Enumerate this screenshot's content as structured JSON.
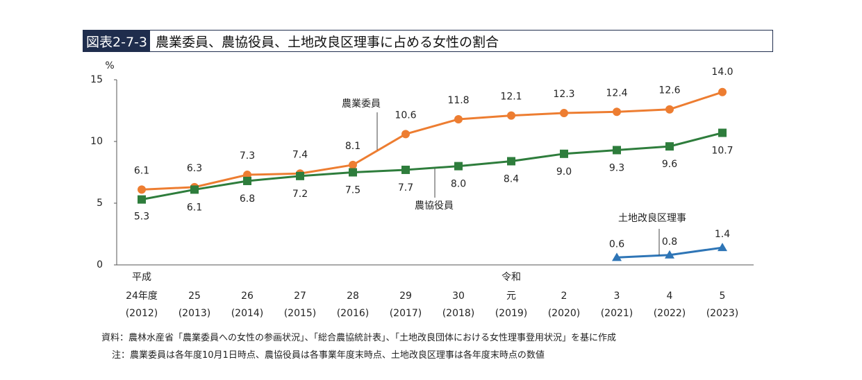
{
  "header": {
    "figure_no": "図表2-7-3",
    "title": "農業委員、農協役員、土地改良区理事に占める女性の割合"
  },
  "footer": {
    "source": "資料：農林水産省「農業委員への女性の参画状況」、「総合農協統計表」、「土地改良団体における女性理事登用状況」を基に作成",
    "note": "注：農業委員は各年度10月1日時点、農協役員は各事業年度末時点、土地改良区理事は各年度末時点の数値"
  },
  "colors": {
    "nogyo_iin": "#ED7D31",
    "nokyo_yakuin": "#2E7D3C",
    "tochi_kairyoku": "#2E75B6",
    "axis": "#555555"
  },
  "chart_data": {
    "type": "line",
    "title": "農業委員、農協役員、土地改良区理事に占める女性の割合",
    "ylabel": "%",
    "ylim": [
      0,
      15
    ],
    "yticks": [
      0,
      5,
      10,
      15
    ],
    "era_labels": [
      {
        "text": "平成",
        "at": "24年度"
      },
      {
        "text": "令和",
        "at": "元"
      }
    ],
    "categories": [
      "24年度",
      "25",
      "26",
      "27",
      "28",
      "29",
      "30",
      "元",
      "2",
      "3",
      "4",
      "5"
    ],
    "categories_sub": [
      "(2012)",
      "(2013)",
      "(2014)",
      "(2015)",
      "(2016)",
      "(2017)",
      "(2018)",
      "(2019)",
      "(2020)",
      "(2021)",
      "(2022)",
      "(2023)"
    ],
    "series": [
      {
        "name": "農業委員",
        "marker": "circle",
        "values": [
          6.1,
          6.3,
          7.3,
          7.4,
          8.1,
          10.6,
          11.8,
          12.1,
          12.3,
          12.4,
          12.6,
          14.0
        ],
        "labels": [
          "6.1",
          "6.3",
          "7.3",
          "7.4",
          "8.1",
          "10.6",
          "11.8",
          "12.1",
          "12.3",
          "12.4",
          "12.6",
          "14.0"
        ]
      },
      {
        "name": "農協役員",
        "marker": "square",
        "values": [
          5.3,
          6.1,
          6.8,
          7.2,
          7.5,
          7.7,
          8.0,
          8.4,
          9.0,
          9.3,
          9.6,
          10.7
        ],
        "labels": [
          "5.3",
          "6.1",
          "6.8",
          "7.2",
          "7.5",
          "7.7",
          "8.0",
          "8.4",
          "9.0",
          "9.3",
          "9.6",
          "10.7"
        ]
      },
      {
        "name": "土地改良区理事",
        "marker": "triangle",
        "values": [
          null,
          null,
          null,
          null,
          null,
          null,
          null,
          null,
          null,
          0.6,
          0.8,
          1.4
        ],
        "labels": [
          null,
          null,
          null,
          null,
          null,
          null,
          null,
          null,
          null,
          "0.6",
          "0.8",
          "1.4"
        ]
      }
    ]
  }
}
